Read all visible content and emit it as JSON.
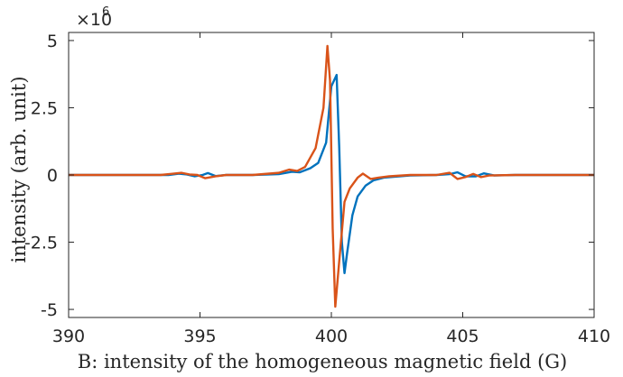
{
  "chart_data": {
    "type": "line",
    "xlabel": "B: intensity of the homogeneous magnetic field (G)",
    "ylabel": "intensity (arb. unit)",
    "y_exponent_prefix": "×10",
    "y_exponent_power": "6",
    "xlim": [
      390,
      410
    ],
    "ylim": [
      -5.3,
      5.3
    ],
    "x_ticks": [
      390,
      395,
      400,
      405,
      410
    ],
    "x_tick_labels": [
      "390",
      "395",
      "400",
      "405",
      "410"
    ],
    "y_ticks": [
      5,
      2.5,
      0,
      -2.5,
      -5
    ],
    "y_tick_labels": [
      "5",
      "2.5",
      "0",
      "-2.5",
      "-5"
    ],
    "grid": false,
    "box": true,
    "series": [
      {
        "color": "#0072bd",
        "points": [
          [
            390,
            0
          ],
          [
            393.8,
            0
          ],
          [
            394.2,
            0.05
          ],
          [
            394.5,
            0.02
          ],
          [
            394.8,
            -0.05
          ],
          [
            395.1,
            0
          ],
          [
            395.3,
            0.07
          ],
          [
            395.6,
            -0.04
          ],
          [
            396,
            0
          ],
          [
            397,
            0
          ],
          [
            398,
            0.03
          ],
          [
            398.5,
            0.12
          ],
          [
            398.8,
            0.1
          ],
          [
            399.2,
            0.25
          ],
          [
            399.5,
            0.45
          ],
          [
            399.8,
            1.2
          ],
          [
            400.0,
            3.3
          ],
          [
            400.2,
            3.72
          ],
          [
            400.3,
            1.0
          ],
          [
            400.4,
            -2.5
          ],
          [
            400.5,
            -3.65
          ],
          [
            400.6,
            -2.9
          ],
          [
            400.8,
            -1.5
          ],
          [
            401.0,
            -0.8
          ],
          [
            401.3,
            -0.4
          ],
          [
            401.6,
            -0.2
          ],
          [
            402,
            -0.1
          ],
          [
            403,
            -0.02
          ],
          [
            404,
            0
          ],
          [
            404.5,
            0.03
          ],
          [
            404.8,
            0.1
          ],
          [
            405.1,
            -0.05
          ],
          [
            405.5,
            -0.05
          ],
          [
            405.8,
            0.06
          ],
          [
            406.2,
            -0.02
          ],
          [
            407,
            0
          ],
          [
            410,
            0
          ]
        ]
      },
      {
        "color": "#d95319",
        "points": [
          [
            390,
            0
          ],
          [
            393.5,
            0
          ],
          [
            393.9,
            0.04
          ],
          [
            394.3,
            0.08
          ],
          [
            394.6,
            0.02
          ],
          [
            394.9,
            0
          ],
          [
            395.2,
            -0.12
          ],
          [
            395.6,
            -0.05
          ],
          [
            396,
            0
          ],
          [
            397,
            0
          ],
          [
            398,
            0.08
          ],
          [
            398.4,
            0.2
          ],
          [
            398.7,
            0.15
          ],
          [
            399.0,
            0.3
          ],
          [
            399.4,
            1.0
          ],
          [
            399.7,
            2.5
          ],
          [
            399.85,
            4.8
          ],
          [
            399.95,
            3.5
          ],
          [
            400.05,
            -2.0
          ],
          [
            400.15,
            -4.9
          ],
          [
            400.3,
            -3.2
          ],
          [
            400.5,
            -1.0
          ],
          [
            400.7,
            -0.5
          ],
          [
            401.0,
            -0.1
          ],
          [
            401.2,
            0.05
          ],
          [
            401.5,
            -0.15
          ],
          [
            401.8,
            -0.1
          ],
          [
            402.2,
            -0.05
          ],
          [
            403,
            0
          ],
          [
            404,
            0
          ],
          [
            404.5,
            0.08
          ],
          [
            404.8,
            -0.15
          ],
          [
            405.1,
            -0.08
          ],
          [
            405.4,
            0.04
          ],
          [
            405.7,
            -0.08
          ],
          [
            406,
            -0.02
          ],
          [
            407,
            0
          ],
          [
            410,
            0
          ]
        ]
      }
    ]
  }
}
